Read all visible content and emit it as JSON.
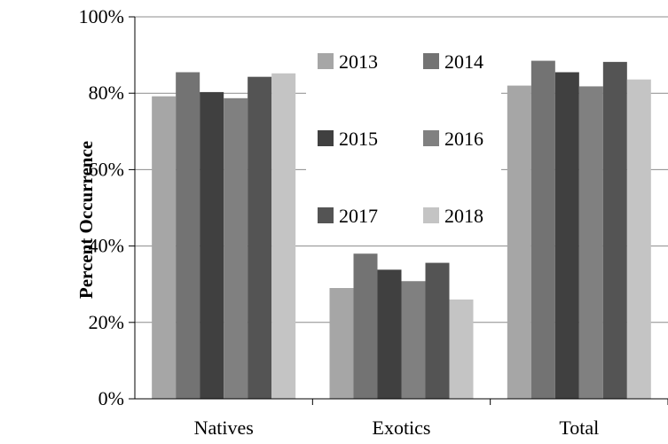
{
  "chart_data": {
    "type": "bar",
    "title": "",
    "xlabel": "",
    "ylabel": "Percent Occurrence",
    "ylim": [
      0,
      100
    ],
    "yticks": [
      "0%",
      "20%",
      "40%",
      "60%",
      "80%",
      "100%"
    ],
    "categories": [
      "Natives",
      "Exotics",
      "Total"
    ],
    "series": [
      {
        "name": "2013",
        "values": [
          79.2,
          29.0,
          82.0
        ],
        "color": "#a6a6a6"
      },
      {
        "name": "2014",
        "values": [
          85.5,
          38.0,
          88.5
        ],
        "color": "#737373"
      },
      {
        "name": "2015",
        "values": [
          80.3,
          33.8,
          85.5
        ],
        "color": "#404040"
      },
      {
        "name": "2016",
        "values": [
          78.7,
          30.8,
          81.8
        ],
        "color": "#808080"
      },
      {
        "name": "2017",
        "values": [
          84.3,
          35.6,
          88.2
        ],
        "color": "#545454"
      },
      {
        "name": "2018",
        "values": [
          85.2,
          26.0,
          83.6
        ],
        "color": "#c4c4c4"
      }
    ],
    "legend_position": "inside-center",
    "grid": true
  }
}
